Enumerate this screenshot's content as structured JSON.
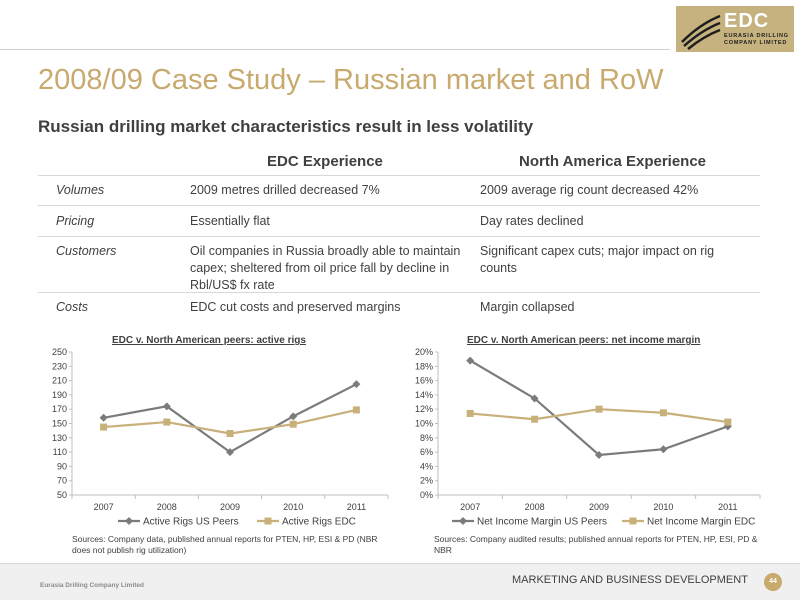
{
  "logo": {
    "main": "EDC",
    "sub_line1": "EURASIA DRILLING",
    "sub_line2": "COMPANY LIMITED"
  },
  "title": "2008/09 Case Study – Russian market and RoW",
  "subtitle": "Russian drilling market characteristics result in less volatility",
  "table": {
    "headers": [
      "EDC Experience",
      "North America Experience"
    ],
    "rows": [
      {
        "label": "Volumes",
        "edc": "2009 metres drilled decreased 7%",
        "na": "2009 average rig count decreased 42%"
      },
      {
        "label": "Pricing",
        "edc": "Essentially flat",
        "na": "Day rates declined"
      },
      {
        "label": "Customers",
        "edc": "Oil companies in Russia broadly able to maintain capex; sheltered from oil price fall by decline in Rbl/US$ fx rate",
        "na": "Significant capex cuts; major impact on rig counts"
      },
      {
        "label": "Costs",
        "edc": "EDC cut costs and preserved margins",
        "na": "Margin collapsed"
      }
    ]
  },
  "colors": {
    "us_peers": "#7b7b7b",
    "edc": "#c8b07a",
    "accent": "#c8a96e"
  },
  "chart_data": [
    {
      "type": "line",
      "title": "EDC v. North American peers: active rigs",
      "x": [
        "2007",
        "2008",
        "2009",
        "2010",
        "2011"
      ],
      "ylim": [
        50,
        250
      ],
      "yticks": [
        "50",
        "70",
        "90",
        "110",
        "130",
        "150",
        "170",
        "190",
        "210",
        "230",
        "250"
      ],
      "series": [
        {
          "name": "Active Rigs US Peers",
          "values": [
            158,
            174,
            110,
            160,
            205
          ],
          "marker": "diamond"
        },
        {
          "name": "Active Rigs EDC",
          "values": [
            145,
            152,
            136,
            149,
            169
          ],
          "marker": "square"
        }
      ],
      "legend": "bottom",
      "source": "Sources: Company data, published annual reports for PTEN, HP, ESI & PD (NBR does not publish rig utilization)"
    },
    {
      "type": "line",
      "title": "EDC v. North American peers: net income margin",
      "x": [
        "2007",
        "2008",
        "2009",
        "2010",
        "2011"
      ],
      "ylim": [
        0,
        20
      ],
      "yticks": [
        "0%",
        "2%",
        "4%",
        "6%",
        "8%",
        "10%",
        "12%",
        "14%",
        "16%",
        "18%",
        "20%"
      ],
      "series": [
        {
          "name": "Net Income Margin US Peers",
          "values": [
            18.8,
            13.5,
            5.6,
            6.4,
            9.6
          ],
          "marker": "diamond"
        },
        {
          "name": "Net Income Margin EDC",
          "values": [
            11.4,
            10.6,
            12.0,
            11.5,
            10.2
          ],
          "marker": "square"
        }
      ],
      "legend": "bottom",
      "source": "Sources: Company audited results; published annual reports for PTEN, HP, ESI, PD & NBR"
    }
  ],
  "footer": {
    "company": "Eurasia Drilling Company Limited",
    "department": "MARKETING AND BUSINESS DEVELOPMENT",
    "page": "44"
  }
}
